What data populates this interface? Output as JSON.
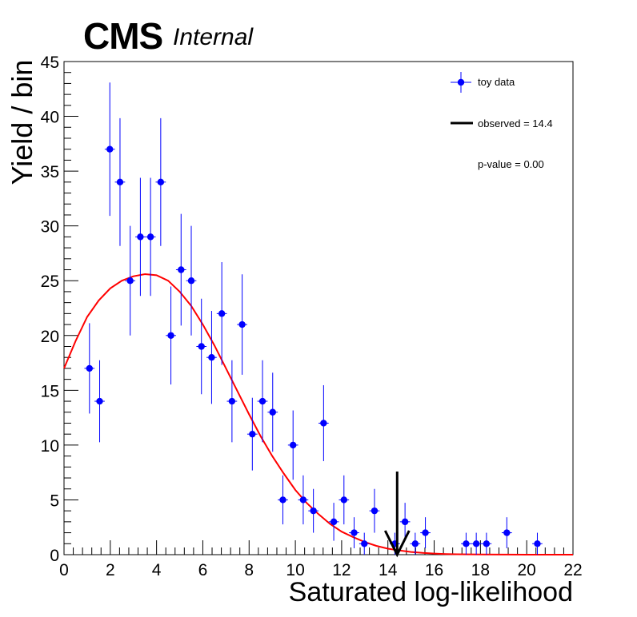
{
  "header": {
    "experiment": "CMS",
    "status": "Internal"
  },
  "chart_data": {
    "type": "scatter",
    "title": "",
    "xlabel": "Saturated log-likelihood",
    "ylabel": "Yield / bin",
    "xlim": [
      0,
      22
    ],
    "ylim": [
      0,
      45
    ],
    "x_ticks": [
      0,
      2,
      4,
      6,
      8,
      10,
      12,
      14,
      16,
      18,
      20,
      22
    ],
    "y_ticks": [
      0,
      5,
      10,
      15,
      20,
      25,
      30,
      35,
      40,
      45
    ],
    "legend": {
      "placement": "top-right",
      "entries": [
        "toy data",
        "observed = 14.4",
        "p-value = 0.00"
      ]
    },
    "series": [
      {
        "name": "toy data",
        "style": "points-with-errors",
        "color": "#0000ff",
        "x": [
          1.1,
          1.54,
          1.98,
          2.42,
          2.86,
          3.3,
          3.74,
          4.18,
          4.62,
          5.06,
          5.5,
          5.94,
          6.38,
          6.82,
          7.26,
          7.7,
          8.14,
          8.58,
          9.02,
          9.46,
          9.9,
          10.34,
          10.78,
          11.22,
          11.66,
          12.1,
          12.54,
          12.98,
          13.42,
          14.3,
          14.74,
          15.18,
          15.62,
          17.38,
          17.82,
          18.26,
          19.14,
          20.46
        ],
        "y": [
          17,
          14,
          37,
          34,
          25,
          29,
          29,
          34,
          20,
          26,
          25,
          19,
          18,
          22,
          14,
          21,
          11,
          14,
          13,
          5,
          10,
          5,
          4,
          12,
          3,
          5,
          2,
          1,
          4,
          1,
          3,
          1,
          2,
          1,
          1,
          1,
          2,
          1
        ]
      },
      {
        "name": "fit",
        "style": "line",
        "color": "#ff0000",
        "x": [
          0,
          0.5,
          1,
          1.5,
          2,
          2.5,
          3,
          3.5,
          4,
          4.5,
          5,
          5.5,
          6,
          6.5,
          7,
          7.5,
          8,
          8.5,
          9,
          9.5,
          10,
          10.5,
          11,
          11.5,
          12,
          12.5,
          13,
          13.5,
          14,
          14.5,
          15,
          15.5,
          16,
          16.5,
          17,
          18,
          19,
          20,
          21,
          22
        ],
        "y": [
          17,
          19.5,
          21.7,
          23.2,
          24.3,
          25.0,
          25.4,
          25.6,
          25.5,
          25.0,
          24.0,
          22.7,
          21.0,
          19.1,
          17.0,
          14.9,
          12.8,
          10.8,
          9.0,
          7.4,
          5.9,
          4.7,
          3.7,
          2.8,
          2.1,
          1.6,
          1.15,
          0.8,
          0.55,
          0.38,
          0.25,
          0.16,
          0.1,
          0.06,
          0.04,
          0.015,
          0.005,
          0.002,
          0.001,
          0
        ]
      }
    ],
    "annotations": [
      {
        "type": "arrow",
        "x": 14.4,
        "label": "observed = 14.4"
      }
    ]
  }
}
